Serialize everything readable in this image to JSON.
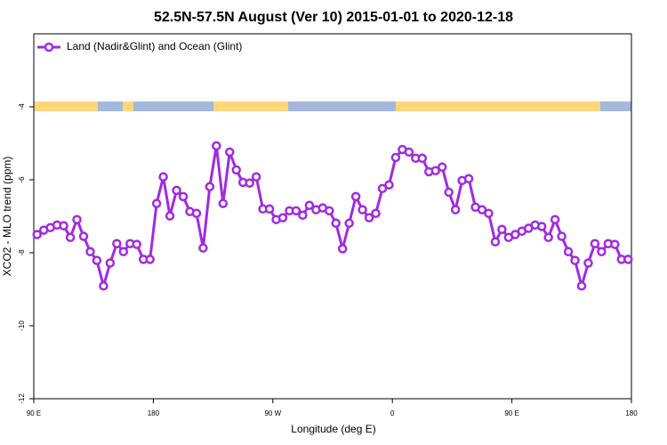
{
  "chart_data": {
    "type": "line",
    "title": "52.5N-57.5N August (Ver 10)   2015-01-01 to 2020-12-18",
    "x_label": "Longitude (deg E)",
    "y_label": "XCO2 - MLO trend (ppm)",
    "legend": "upper left",
    "xlim": [
      90,
      540
    ],
    "xticks": [
      {
        "value": 90,
        "label": "90 E"
      },
      {
        "value": 180,
        "label": "180"
      },
      {
        "value": 270,
        "label": "90 W"
      },
      {
        "value": 360,
        "label": "0"
      },
      {
        "value": 450,
        "label": "90 E"
      },
      {
        "value": 540,
        "label": "180"
      }
    ],
    "ylim": [
      -12,
      -2
    ],
    "yticks": [
      -12,
      -10,
      -8,
      -6,
      -4
    ],
    "x": [
      92.5,
      97.5,
      102.5,
      107.5,
      112.5,
      117.5,
      122.5,
      127.5,
      132.5,
      137.5,
      142.5,
      147.5,
      152.5,
      157.5,
      162.5,
      167.5,
      172.5,
      177.5,
      182.5,
      187.5,
      192.5,
      197.5,
      202.5,
      207.5,
      212.5,
      217.5,
      222.5,
      227.5,
      232.5,
      237.5,
      242.5,
      247.5,
      252.5,
      257.5,
      262.5,
      267.5,
      272.5,
      277.5,
      282.5,
      287.5,
      292.5,
      297.5,
      302.5,
      307.5,
      312.5,
      317.5,
      322.5,
      327.5,
      332.5,
      337.5,
      342.5,
      347.5,
      352.5,
      357.5,
      362.5,
      367.5,
      372.5,
      377.5,
      382.5,
      387.5,
      392.5,
      397.5,
      402.5,
      407.5,
      412.5,
      417.5,
      422.5,
      427.5,
      432.5,
      437.5,
      442.5,
      447.5,
      452.5,
      457.5,
      462.5,
      467.5,
      472.5,
      477.5,
      482.5,
      487.5,
      492.5,
      497.5,
      502.5,
      507.5,
      512.5,
      517.5,
      522.5,
      527.5,
      532.5,
      537.5
    ],
    "series": [
      {
        "name": "Land (Nadir&Glint) and Ocean (Glint)",
        "color": "#a02be0",
        "values": [
          -7.5,
          -7.38,
          -7.31,
          -7.24,
          -7.26,
          -7.58,
          -7.09,
          -7.55,
          -7.97,
          -8.21,
          -8.91,
          -8.28,
          -7.75,
          -7.97,
          -7.75,
          -7.77,
          -8.18,
          -8.18,
          -6.65,
          -5.92,
          -6.99,
          -6.29,
          -6.46,
          -6.87,
          -6.92,
          -7.87,
          -6.19,
          -5.07,
          -6.65,
          -5.24,
          -5.73,
          -6.07,
          -6.09,
          -5.92,
          -6.8,
          -6.8,
          -7.09,
          -7.04,
          -6.85,
          -6.85,
          -6.97,
          -6.7,
          -6.82,
          -6.77,
          -6.85,
          -7.19,
          -7.89,
          -7.19,
          -6.46,
          -6.82,
          -7.04,
          -6.92,
          -6.24,
          -6.14,
          -5.39,
          -5.17,
          -5.24,
          -5.41,
          -5.41,
          -5.78,
          -5.75,
          -5.65,
          -6.34,
          -6.82,
          -6.02,
          -5.97,
          -6.75,
          -6.82,
          -6.92,
          -7.7,
          -7.36,
          -7.58,
          -7.5,
          -7.41,
          -7.33,
          -7.24,
          -7.28,
          -7.58,
          -7.09,
          -7.55,
          -7.97,
          -8.21,
          -8.91,
          -8.28,
          -7.75,
          -7.97,
          -7.75,
          -7.77,
          -8.18,
          -8.18
        ]
      }
    ]
  }
}
